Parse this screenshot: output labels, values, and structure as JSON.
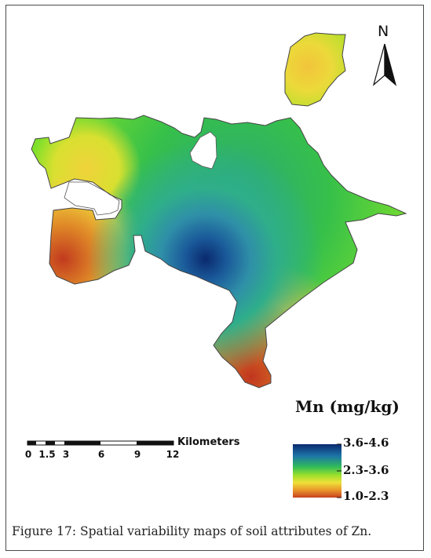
{
  "map": {
    "north_label": "N",
    "legend": {
      "title": "Mn (mg/kg)",
      "classes": [
        {
          "label": "3.6-4.6",
          "color": "#0a2a6e"
        },
        {
          "label": "2.3-3.6",
          "color": "#2db82d"
        },
        {
          "label": "1.0-2.3",
          "color": "#c8421e"
        }
      ]
    },
    "scale_bar": {
      "units": "Kilometers",
      "ticks": [
        "0",
        "1.5",
        "3",
        "6",
        "9",
        "12"
      ]
    }
  },
  "caption": {
    "label": "Figure 17",
    "text": ": Spatial variability maps of soil attributes of Zn."
  }
}
